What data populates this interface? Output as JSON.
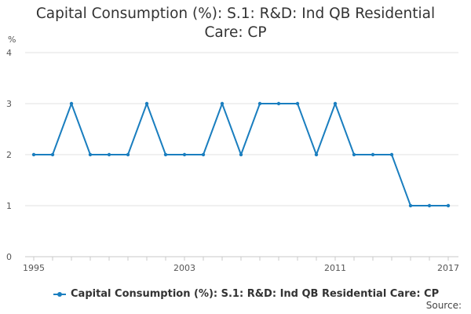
{
  "title_line1": "Capital Consumption (%): S.1: R&D: Ind QB Residential",
  "title_line2": "Care: CP",
  "source_label": "Source:",
  "chart_data": {
    "type": "line",
    "title": "Capital Consumption (%): S.1: R&D: Ind QB Residential Care: CP",
    "ylabel": "%",
    "xlabel": "",
    "x": [
      1995,
      1996,
      1997,
      1998,
      1999,
      2000,
      2001,
      2002,
      2003,
      2004,
      2005,
      2006,
      2007,
      2008,
      2009,
      2010,
      2011,
      2012,
      2013,
      2014,
      2015,
      2016,
      2017
    ],
    "series": [
      {
        "name": "Capital Consumption (%): S.1: R&D: Ind QB Residential Care: CP",
        "values": [
          2,
          2,
          3,
          2,
          2,
          2,
          3,
          2,
          2,
          2,
          3,
          2,
          3,
          3,
          3,
          2,
          3,
          2,
          2,
          2,
          1,
          1,
          1
        ]
      }
    ],
    "ylim": [
      0,
      4
    ],
    "yticks": [
      "0",
      "1",
      "2",
      "3",
      "4"
    ],
    "xtick_labels": [
      "1995",
      "2003",
      "2011",
      "2017"
    ],
    "grid": true,
    "legend_position": "bottom",
    "color": "#1a7ebf"
  }
}
